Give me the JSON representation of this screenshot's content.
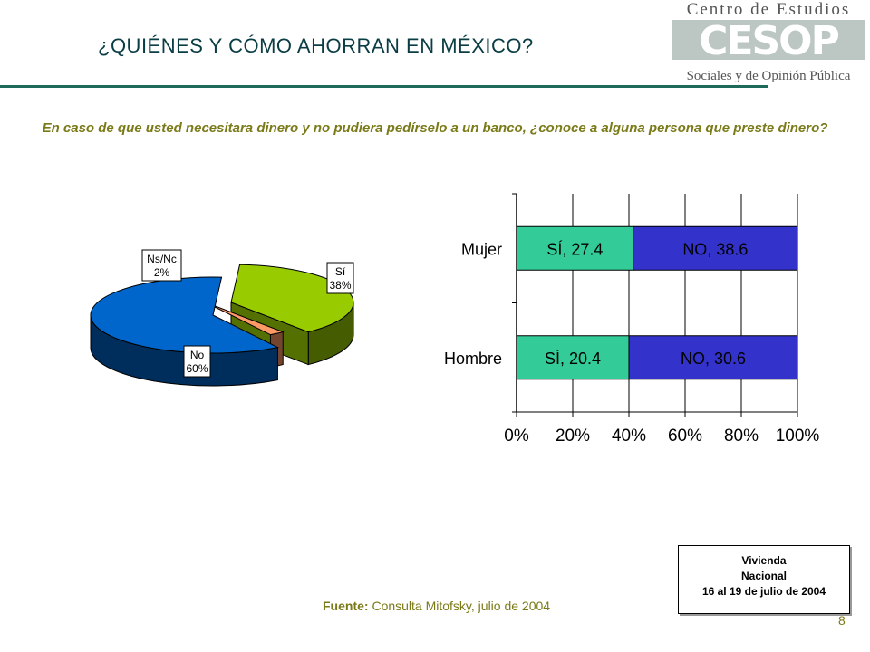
{
  "header": {
    "title": "¿QUIÉNES Y CÓMO AHORRAN EN MÉXICO?",
    "logo": {
      "line1": "Centro de Estudios",
      "mark": "CESOP",
      "line2": "Sociales y de Opinión Pública"
    }
  },
  "question": "En caso de que usted necesitara dinero y no pudiera pedírselo a un banco, ¿conoce a alguna persona que preste dinero?",
  "chart_data": [
    {
      "type": "pie",
      "style": "3d",
      "slices": [
        {
          "label": "Sí",
          "value": 38,
          "display": "38%",
          "color": "#99cc00"
        },
        {
          "label": "No",
          "value": 60,
          "display": "60%",
          "color": "#0066cc"
        },
        {
          "label": "Ns/Nc",
          "value": 2,
          "display": "2%",
          "color": "#ff9966"
        }
      ]
    },
    {
      "type": "bar",
      "orientation": "horizontal",
      "stacked": true,
      "percent_axis": true,
      "categories": [
        "Mujer",
        "Hombre"
      ],
      "series": [
        {
          "name": "SÍ",
          "values": [
            27.4,
            20.4
          ],
          "labels": [
            "SÍ, 27.4",
            "SÍ, 20.4"
          ],
          "color": "#33cc99"
        },
        {
          "name": "NO",
          "values": [
            38.6,
            30.6
          ],
          "labels": [
            "NO, 38.6",
            "NO, 30.6"
          ],
          "color": "#3333cc"
        }
      ],
      "xticks": [
        "0%",
        "20%",
        "40%",
        "60%",
        "80%",
        "100%"
      ],
      "xlim": [
        0,
        100
      ],
      "grid": true
    }
  ],
  "infobox": {
    "line1": "Vivienda",
    "line2": "Nacional",
    "line3": "16 al 19 de julio de 2004"
  },
  "source": {
    "label": "Fuente:",
    "text": " Consulta Mitofsky,  julio de 2004"
  },
  "page_number": "8"
}
